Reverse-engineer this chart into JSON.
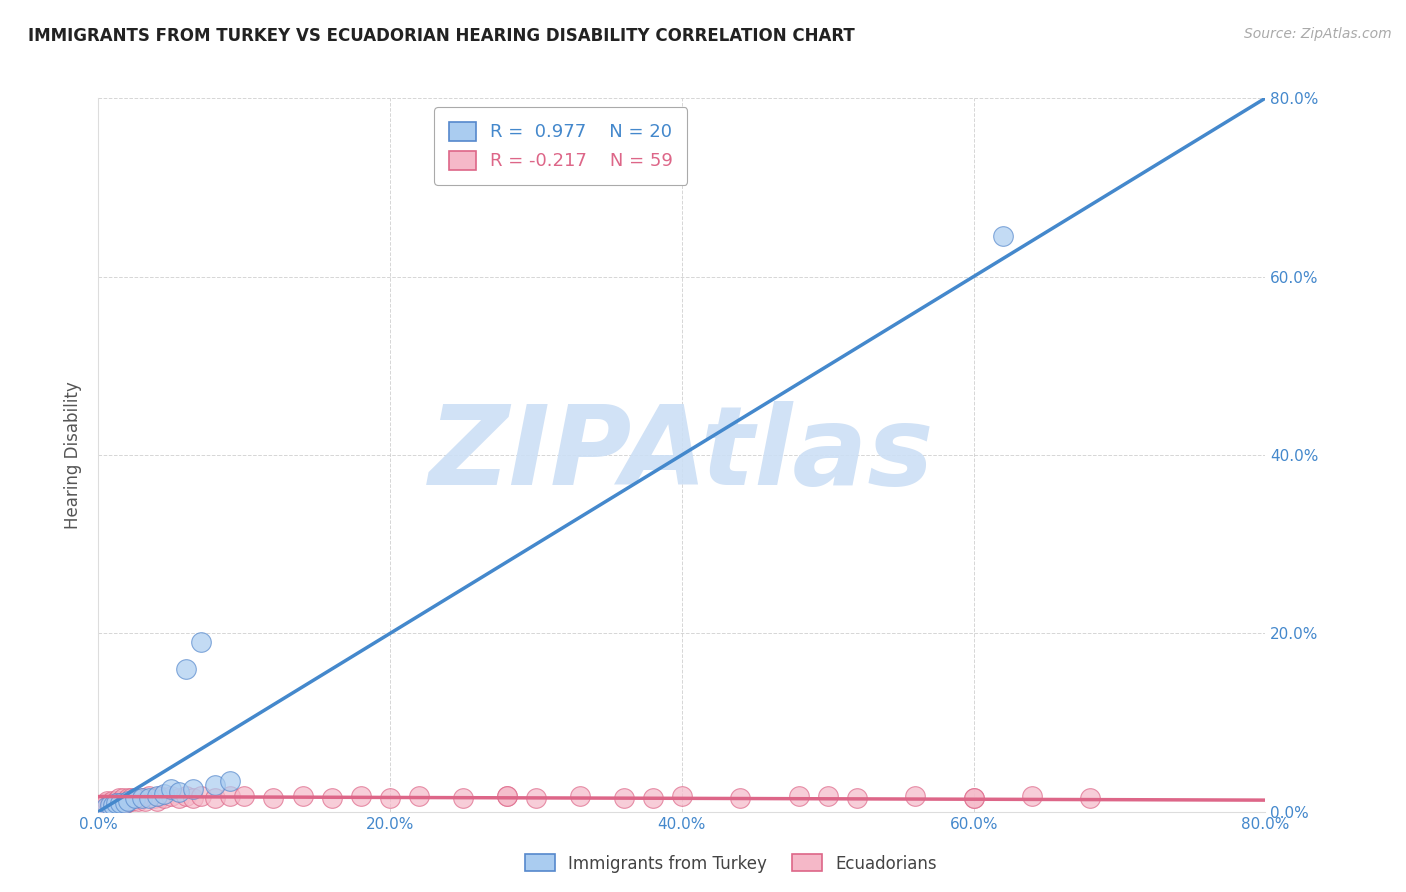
{
  "title": "IMMIGRANTS FROM TURKEY VS ECUADORIAN HEARING DISABILITY CORRELATION CHART",
  "source_text": "Source: ZipAtlas.com",
  "ylabel": "Hearing Disability",
  "xlim": [
    0.0,
    0.8
  ],
  "ylim": [
    0.0,
    0.8
  ],
  "xticks": [
    0.0,
    0.2,
    0.4,
    0.6,
    0.8
  ],
  "yticks": [
    0.0,
    0.2,
    0.4,
    0.6,
    0.8
  ],
  "xticklabels": [
    "0.0%",
    "20.0%",
    "40.0%",
    "60.0%",
    "80.0%"
  ],
  "yticklabels": [
    "0.0%",
    "20.0%",
    "40.0%",
    "60.0%",
    "80.0%"
  ],
  "blue_R": 0.977,
  "blue_N": 20,
  "pink_R": -0.217,
  "pink_N": 59,
  "blue_color": "#aaccf0",
  "pink_color": "#f5b8c8",
  "blue_edge_color": "#5588cc",
  "pink_edge_color": "#dd6688",
  "blue_line_color": "#4488cc",
  "pink_line_color": "#dd6688",
  "tick_label_color": "#4488cc",
  "blue_scatter_x": [
    0.005,
    0.008,
    0.01,
    0.012,
    0.015,
    0.018,
    0.02,
    0.025,
    0.03,
    0.035,
    0.04,
    0.045,
    0.05,
    0.055,
    0.06,
    0.065,
    0.07,
    0.08,
    0.09,
    0.62
  ],
  "blue_scatter_y": [
    0.005,
    0.008,
    0.008,
    0.01,
    0.01,
    0.01,
    0.012,
    0.015,
    0.015,
    0.015,
    0.018,
    0.02,
    0.025,
    0.022,
    0.16,
    0.025,
    0.19,
    0.03,
    0.035,
    0.645
  ],
  "pink_scatter_x": [
    0.003,
    0.005,
    0.006,
    0.008,
    0.009,
    0.01,
    0.011,
    0.012,
    0.013,
    0.014,
    0.015,
    0.016,
    0.017,
    0.018,
    0.019,
    0.02,
    0.021,
    0.022,
    0.023,
    0.025,
    0.027,
    0.03,
    0.032,
    0.035,
    0.038,
    0.04,
    0.042,
    0.045,
    0.05,
    0.055,
    0.06,
    0.065,
    0.07,
    0.08,
    0.09,
    0.1,
    0.12,
    0.14,
    0.16,
    0.18,
    0.2,
    0.22,
    0.25,
    0.28,
    0.3,
    0.33,
    0.36,
    0.4,
    0.44,
    0.48,
    0.52,
    0.56,
    0.6,
    0.64,
    0.68,
    0.5,
    0.38,
    0.28,
    0.6
  ],
  "pink_scatter_y": [
    0.008,
    0.01,
    0.012,
    0.01,
    0.012,
    0.008,
    0.01,
    0.012,
    0.01,
    0.015,
    0.012,
    0.01,
    0.015,
    0.012,
    0.01,
    0.015,
    0.012,
    0.015,
    0.012,
    0.015,
    0.012,
    0.015,
    0.012,
    0.018,
    0.015,
    0.012,
    0.018,
    0.015,
    0.018,
    0.015,
    0.018,
    0.015,
    0.018,
    0.015,
    0.018,
    0.018,
    0.015,
    0.018,
    0.015,
    0.018,
    0.015,
    0.018,
    0.015,
    0.018,
    0.015,
    0.018,
    0.015,
    0.018,
    0.015,
    0.018,
    0.015,
    0.018,
    0.015,
    0.018,
    0.015,
    0.018,
    0.015,
    0.018,
    0.015
  ],
  "blue_line_x0": 0.0,
  "blue_line_y0": 0.0,
  "blue_line_x1": 0.8,
  "blue_line_y1": 0.8,
  "pink_line_x0": 0.0,
  "pink_line_y0": 0.017,
  "pink_line_x1": 0.8,
  "pink_line_y1": 0.013,
  "watermark_text": "ZIPAtlas",
  "watermark_color": "#ccdff5",
  "background_color": "#ffffff",
  "grid_color": "#cccccc",
  "legend_bottom_labels": [
    "Immigrants from Turkey",
    "Ecuadorians"
  ]
}
